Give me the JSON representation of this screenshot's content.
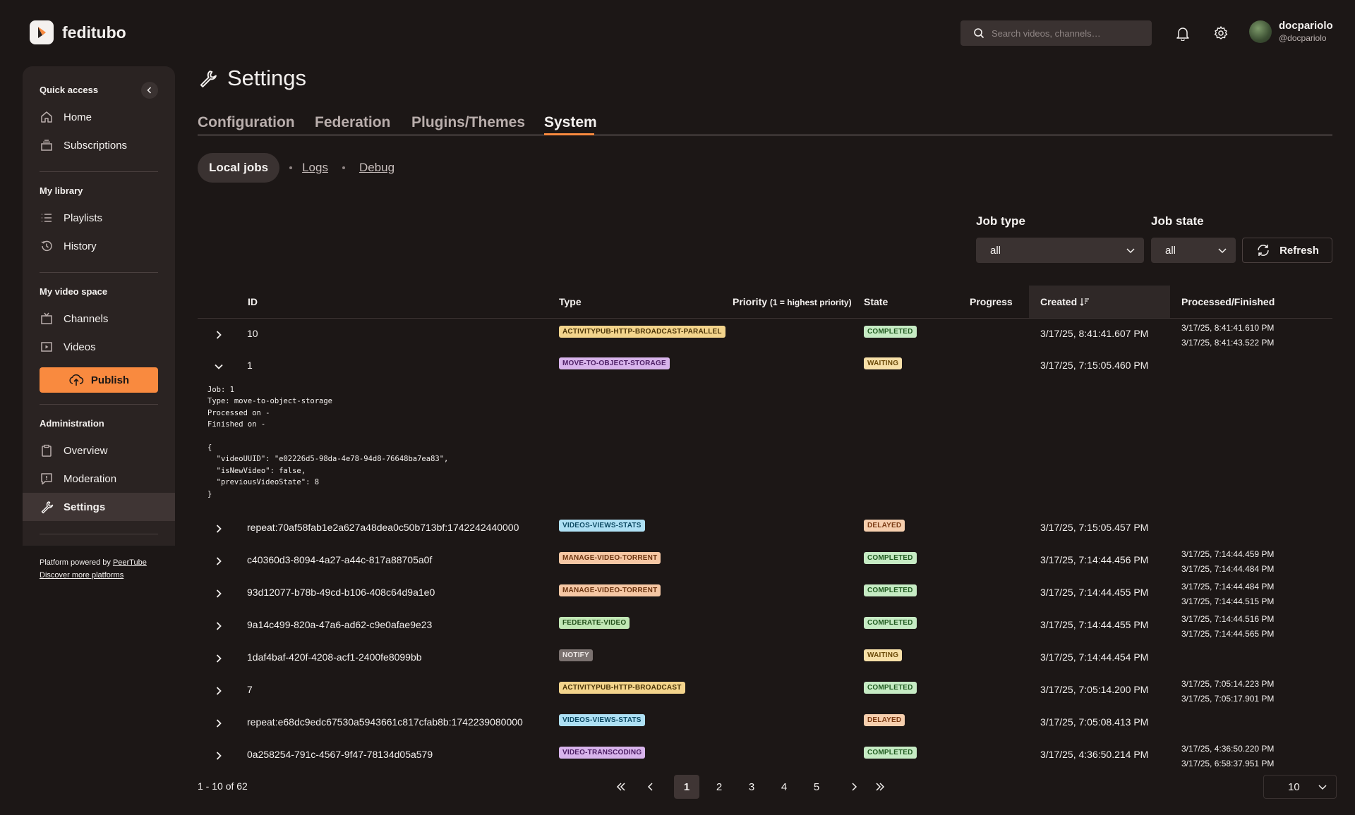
{
  "app": {
    "name": "feditubo"
  },
  "header": {
    "search_placeholder": "Search videos, channels…",
    "user": {
      "name": "docpariolo",
      "handle": "@docpariolo"
    }
  },
  "sidebar": {
    "quick_access": {
      "title": "Quick access",
      "items": [
        {
          "label": "Home"
        },
        {
          "label": "Subscriptions"
        }
      ]
    },
    "my_library": {
      "title": "My library",
      "items": [
        {
          "label": "Playlists"
        },
        {
          "label": "History"
        }
      ]
    },
    "my_video_space": {
      "title": "My video space",
      "items": [
        {
          "label": "Channels"
        },
        {
          "label": "Videos"
        }
      ]
    },
    "publish_label": "Publish",
    "administration": {
      "title": "Administration",
      "items": [
        {
          "label": "Overview"
        },
        {
          "label": "Moderation"
        },
        {
          "label": "Settings",
          "active": true
        }
      ]
    },
    "footer": {
      "powered_prefix": "Platform powered by ",
      "powered_link": "PeerTube",
      "discover": "Discover more platforms"
    }
  },
  "page": {
    "title": "Settings",
    "tabs": [
      {
        "label": "Configuration"
      },
      {
        "label": "Federation"
      },
      {
        "label": "Plugins/Themes"
      },
      {
        "label": "System",
        "active": true
      }
    ],
    "subnav": {
      "active": "Local jobs",
      "links": [
        "Logs",
        "Debug"
      ]
    },
    "filters": {
      "job_type": {
        "label": "Job type",
        "value": "all"
      },
      "job_state": {
        "label": "Job state",
        "value": "all"
      },
      "refresh_label": "Refresh"
    }
  },
  "table": {
    "columns": {
      "id": "ID",
      "type": "Type",
      "priority": "Priority",
      "priority_note": "(1 = highest priority)",
      "state": "State",
      "progress": "Progress",
      "created": "Created",
      "processed": "Processed/Finished"
    },
    "rows": [
      {
        "id": "10",
        "type": "ACTIVITYPUB-HTTP-BROADCAST-PARALLEL",
        "type_color": "#f3d48c",
        "type_text": "#4a3306",
        "state": "COMPLETED",
        "created": "3/17/25, 8:41:41.607 PM",
        "processed": "3/17/25, 8:41:41.610 PM",
        "finished": "3/17/25, 8:41:43.522 PM"
      },
      {
        "id": "1",
        "expanded": true,
        "type": "MOVE-TO-OBJECT-STORAGE",
        "type_color": "#d8b4ec",
        "type_text": "#4b1d63",
        "state": "WAITING",
        "created": "3/17/25, 7:15:05.460 PM",
        "processed": "",
        "finished": ""
      },
      {
        "id": "repeat:70af58fab1e2a627a48dea0c50b713bf:1742242440000",
        "type": "VIDEOS-VIEWS-STATS",
        "type_color": "#aee0f4",
        "type_text": "#0d4a63",
        "state": "DELAYED",
        "created": "3/17/25, 7:15:05.457 PM",
        "processed": "",
        "finished": ""
      },
      {
        "id": "c40360d3-8094-4a27-a44c-817a88705a0f",
        "type": "MANAGE-VIDEO-TORRENT",
        "type_color": "#f5c7a4",
        "type_text": "#6b3410",
        "state": "COMPLETED",
        "created": "3/17/25, 7:14:44.456 PM",
        "processed": "3/17/25, 7:14:44.459 PM",
        "finished": "3/17/25, 7:14:44.484 PM"
      },
      {
        "id": "93d12077-b78b-49cd-b106-408c64d9a1e0",
        "type": "MANAGE-VIDEO-TORRENT",
        "type_color": "#f5c7a4",
        "type_text": "#6b3410",
        "state": "COMPLETED",
        "created": "3/17/25, 7:14:44.455 PM",
        "processed": "3/17/25, 7:14:44.484 PM",
        "finished": "3/17/25, 7:14:44.515 PM"
      },
      {
        "id": "9a14c499-820a-47a6-ad62-c9e0afae9e23",
        "type": "FEDERATE-VIDEO",
        "type_color": "#c1e7b5",
        "type_text": "#22501a",
        "state": "COMPLETED",
        "created": "3/17/25, 7:14:44.455 PM",
        "processed": "3/17/25, 7:14:44.516 PM",
        "finished": "3/17/25, 7:14:44.565 PM"
      },
      {
        "id": "1daf4baf-420f-4208-acf1-2400fe8099bb",
        "type": "NOTIFY",
        "type_color": "#7a716f",
        "type_text": "#efe9e7",
        "state": "WAITING",
        "created": "3/17/25, 7:14:44.454 PM",
        "processed": "",
        "finished": ""
      },
      {
        "id": "7",
        "type": "ACTIVITYPUB-HTTP-BROADCAST",
        "type_color": "#f3d48c",
        "type_text": "#4a3306",
        "state": "COMPLETED",
        "created": "3/17/25, 7:05:14.200 PM",
        "processed": "3/17/25, 7:05:14.223 PM",
        "finished": "3/17/25, 7:05:17.901 PM"
      },
      {
        "id": "repeat:e68dc9edc67530a5943661c817cfab8b:1742239080000",
        "type": "VIDEOS-VIEWS-STATS",
        "type_color": "#aee0f4",
        "type_text": "#0d4a63",
        "state": "DELAYED",
        "created": "3/17/25, 7:05:08.413 PM",
        "processed": "",
        "finished": ""
      },
      {
        "id": "0a258254-791c-4567-9f47-78134d05a579",
        "type": "VIDEO-TRANSCODING",
        "type_color": "#d8b4ec",
        "type_text": "#4b1d63",
        "state": "COMPLETED",
        "created": "3/17/25, 4:36:50.214 PM",
        "processed": "3/17/25, 4:36:50.220 PM",
        "finished": "3/17/25, 6:58:37.951 PM"
      }
    ],
    "state_colors": {
      "COMPLETED": {
        "bg": "#c6ebc4",
        "fg": "#1f5a1f"
      },
      "WAITING": {
        "bg": "#f7e0a8",
        "fg": "#6b4a08"
      },
      "DELAYED": {
        "bg": "#f6cfae",
        "fg": "#7a3a12"
      }
    },
    "expanded_detail": "Job: 1\nType: move-to-object-storage\nProcessed on -\nFinished on -\n\n{\n  \"videoUUID\": \"e02226d5-98da-4e78-94d8-76648ba7ea83\",\n  \"isNewVideo\": false,\n  \"previousVideoState\": 8\n}"
  },
  "pagination": {
    "summary": "1 - 10 of 62",
    "pages": [
      "1",
      "2",
      "3",
      "4",
      "5"
    ],
    "current": "1",
    "per_page": "10"
  },
  "colors": {
    "accent": "#f98a3f",
    "background": "#1c1716",
    "sidebar": "#2a2322"
  }
}
